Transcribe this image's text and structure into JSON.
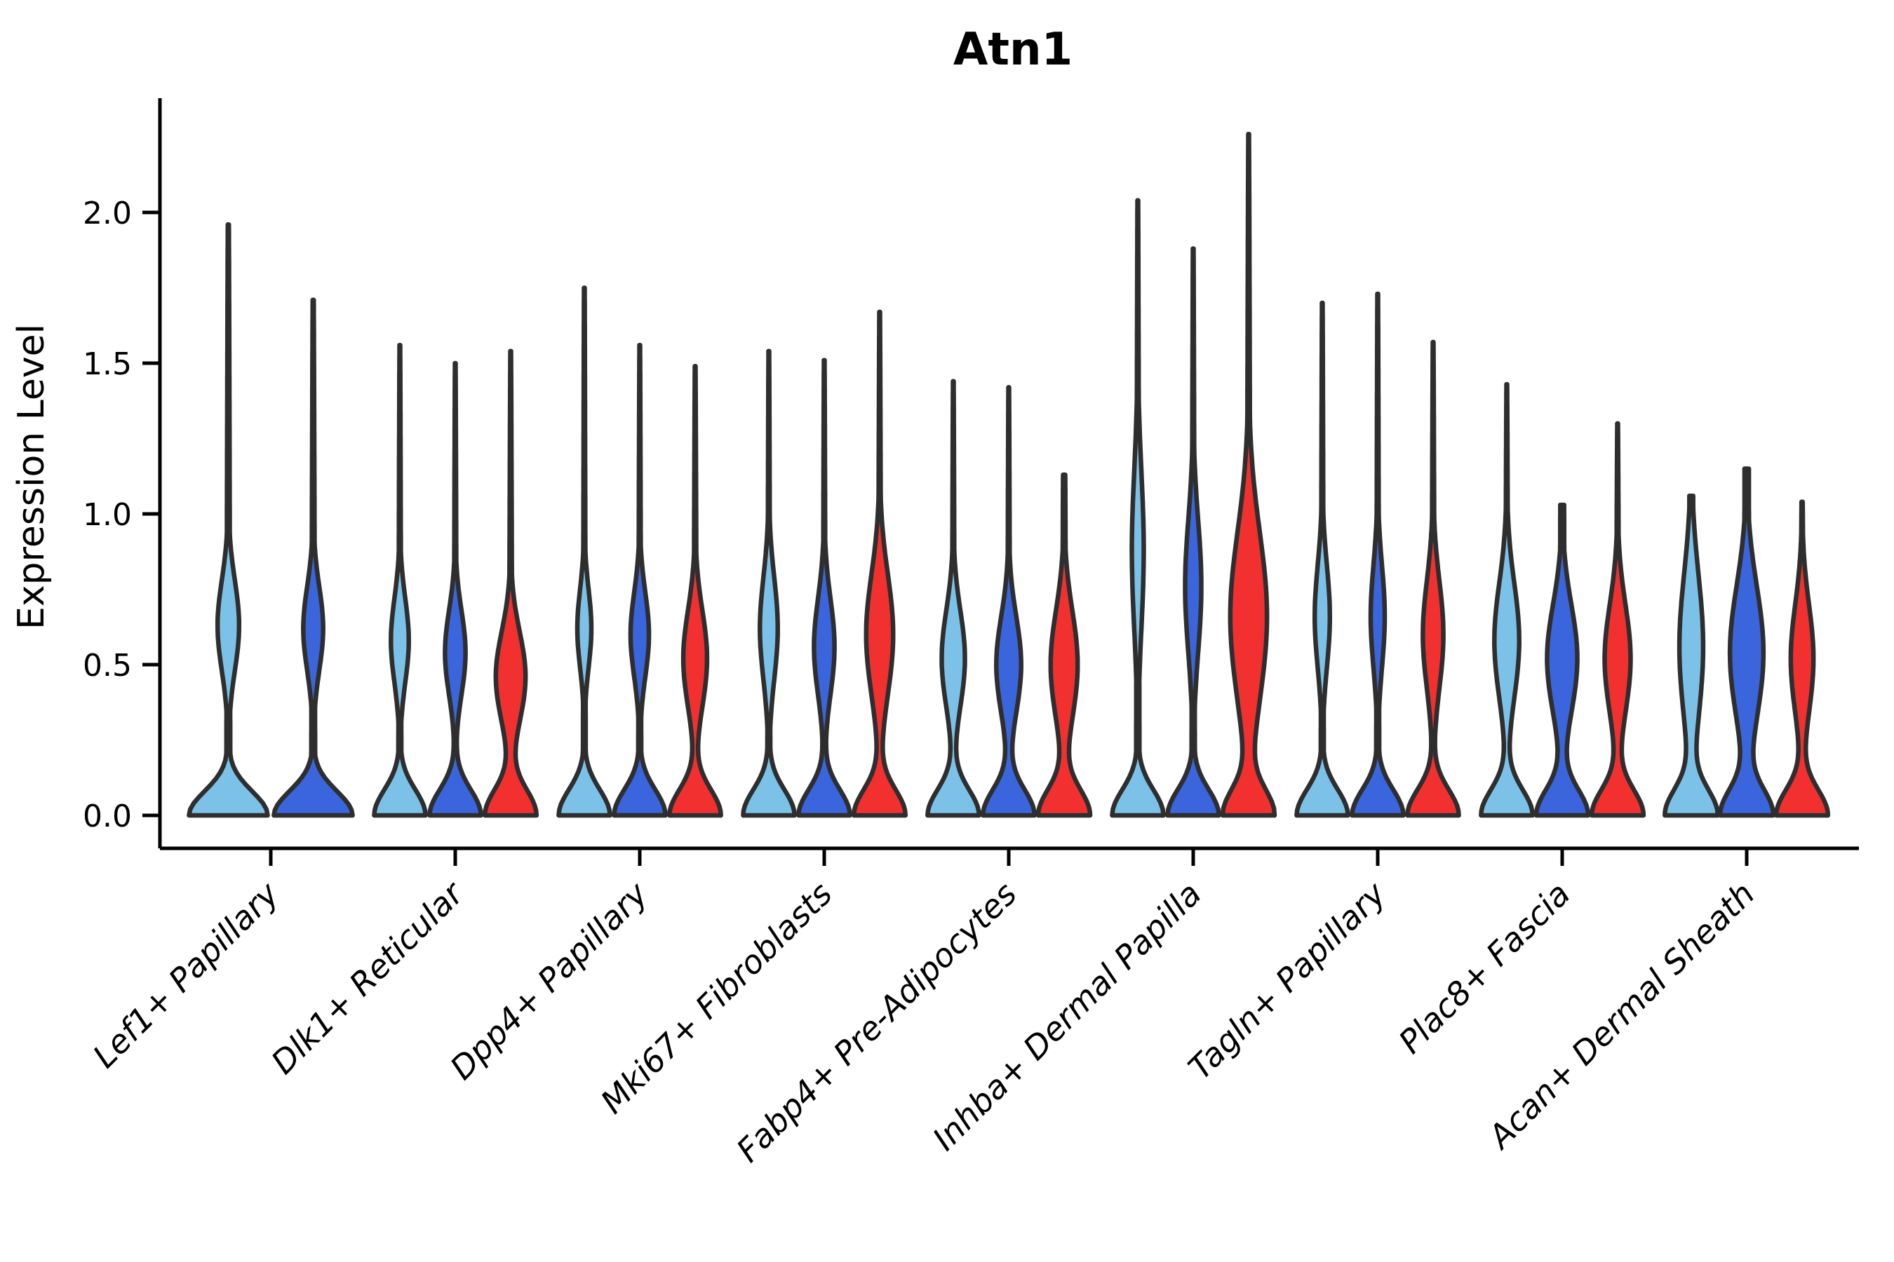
{
  "title": "Atn1",
  "y_axis": {
    "label": "Expression Level",
    "ticks": [
      "0.0",
      "0.5",
      "1.0",
      "1.5",
      "2.0"
    ],
    "tick_values": [
      0.0,
      0.5,
      1.0,
      1.5,
      2.0
    ],
    "range": [
      0.0,
      2.35
    ]
  },
  "style": {
    "edge_color": "#2E2E2E",
    "axis_color": "#000000",
    "background": "#ffffff"
  },
  "chart_data": {
    "type": "violin",
    "title": "Atn1",
    "ylabel": "Expression Level",
    "ylim": [
      0.0,
      2.35
    ],
    "grid": false,
    "legend": "none",
    "hues": [
      "light_blue",
      "dark_blue",
      "red"
    ],
    "hue_colors": {
      "light_blue": "#7CC2E8",
      "dark_blue": "#3B65DC",
      "red": "#F23030"
    },
    "categories": [
      "Lef1+ Papillary",
      "Dlk1+ Reticular",
      "Dpp4+ Papillary",
      "Mki67+ Fibroblasts",
      "Fabp4+ Pre-Adipocytes",
      "Inhba+ Dermal Papilla",
      "Tagln+ Papillary",
      "Plac8+ Fascia",
      "Acan+ Dermal Sheath"
    ],
    "groups": [
      {
        "category": "Lef1+ Papillary",
        "violins": [
          {
            "hue": "light_blue",
            "max": 1.96,
            "profile": {
              "base_w": 0.95,
              "base_sigma": 0.08,
              "bulge_center": 0.63,
              "bulge_amp": 0.26,
              "bulge_sigma": 0.15,
              "stem_w": 0.05,
              "tip_w": 0.012
            }
          },
          {
            "hue": "dark_blue",
            "max": 1.71,
            "profile": {
              "base_w": 0.95,
              "base_sigma": 0.08,
              "bulge_center": 0.62,
              "bulge_amp": 0.24,
              "bulge_sigma": 0.14,
              "stem_w": 0.05,
              "tip_w": 0.012
            }
          }
        ]
      },
      {
        "category": "Dlk1+ Reticular",
        "violins": [
          {
            "hue": "light_blue",
            "max": 1.56,
            "profile": {
              "base_w": 0.95,
              "base_sigma": 0.085,
              "bulge_center": 0.58,
              "bulge_amp": 0.33,
              "bulge_sigma": 0.14,
              "stem_w": 0.06,
              "tip_w": 0.012
            }
          },
          {
            "hue": "dark_blue",
            "max": 1.5,
            "profile": {
              "base_w": 0.95,
              "base_sigma": 0.085,
              "bulge_center": 0.54,
              "bulge_amp": 0.38,
              "bulge_sigma": 0.14,
              "stem_w": 0.06,
              "tip_w": 0.012
            }
          },
          {
            "hue": "red",
            "max": 1.54,
            "profile": {
              "base_w": 0.95,
              "base_sigma": 0.085,
              "bulge_center": 0.46,
              "bulge_amp": 0.55,
              "bulge_sigma": 0.15,
              "stem_w": 0.07,
              "tip_w": 0.012
            }
          }
        ]
      },
      {
        "category": "Dpp4+ Papillary",
        "violins": [
          {
            "hue": "light_blue",
            "max": 1.75,
            "profile": {
              "base_w": 0.95,
              "base_sigma": 0.085,
              "bulge_center": 0.62,
              "bulge_amp": 0.26,
              "bulge_sigma": 0.13,
              "stem_w": 0.055,
              "tip_w": 0.012
            }
          },
          {
            "hue": "dark_blue",
            "max": 1.56,
            "profile": {
              "base_w": 0.95,
              "base_sigma": 0.085,
              "bulge_center": 0.6,
              "bulge_amp": 0.34,
              "bulge_sigma": 0.14,
              "stem_w": 0.06,
              "tip_w": 0.012
            }
          },
          {
            "hue": "red",
            "max": 1.49,
            "profile": {
              "base_w": 0.95,
              "base_sigma": 0.085,
              "bulge_center": 0.52,
              "bulge_amp": 0.44,
              "bulge_sigma": 0.16,
              "stem_w": 0.07,
              "tip_w": 0.012
            }
          }
        ]
      },
      {
        "category": "Mki67+ Fibroblasts",
        "violins": [
          {
            "hue": "light_blue",
            "max": 1.54,
            "profile": {
              "base_w": 0.95,
              "base_sigma": 0.085,
              "bulge_center": 0.62,
              "bulge_amp": 0.33,
              "bulge_sigma": 0.17,
              "stem_w": 0.06,
              "tip_w": 0.012
            }
          },
          {
            "hue": "dark_blue",
            "max": 1.51,
            "profile": {
              "base_w": 0.95,
              "base_sigma": 0.085,
              "bulge_center": 0.56,
              "bulge_amp": 0.38,
              "bulge_sigma": 0.16,
              "stem_w": 0.06,
              "tip_w": 0.012
            }
          },
          {
            "hue": "red",
            "max": 1.67,
            "profile": {
              "base_w": 0.95,
              "base_sigma": 0.085,
              "bulge_center": 0.6,
              "bulge_amp": 0.5,
              "bulge_sigma": 0.2,
              "stem_w": 0.07,
              "tip_w": 0.012
            }
          }
        ]
      },
      {
        "category": "Fabp4+ Pre-Adipocytes",
        "violins": [
          {
            "hue": "light_blue",
            "max": 1.44,
            "profile": {
              "base_w": 0.95,
              "base_sigma": 0.085,
              "bulge_center": 0.52,
              "bulge_amp": 0.43,
              "bulge_sigma": 0.16,
              "stem_w": 0.06,
              "tip_w": 0.012
            }
          },
          {
            "hue": "dark_blue",
            "max": 1.42,
            "profile": {
              "base_w": 0.95,
              "base_sigma": 0.085,
              "bulge_center": 0.5,
              "bulge_amp": 0.46,
              "bulge_sigma": 0.16,
              "stem_w": 0.06,
              "tip_w": 0.012
            }
          },
          {
            "hue": "red",
            "max": 1.13,
            "profile": {
              "base_w": 0.95,
              "base_sigma": 0.085,
              "bulge_center": 0.5,
              "bulge_amp": 0.5,
              "bulge_sigma": 0.18,
              "stem_w": 0.08,
              "tip_w": 0.04
            }
          }
        ]
      },
      {
        "category": "Inhba+ Dermal Papilla",
        "violins": [
          {
            "hue": "light_blue",
            "max": 2.04,
            "profile": {
              "base_w": 0.95,
              "base_sigma": 0.085,
              "bulge_center": 0.88,
              "bulge_amp": 0.22,
              "bulge_sigma": 0.26,
              "stem_w": 0.065,
              "tip_w": 0.012
            }
          },
          {
            "hue": "dark_blue",
            "max": 1.88,
            "profile": {
              "base_w": 0.95,
              "base_sigma": 0.085,
              "bulge_center": 0.76,
              "bulge_amp": 0.3,
              "bulge_sigma": 0.22,
              "stem_w": 0.065,
              "tip_w": 0.012
            }
          },
          {
            "hue": "red",
            "max": 2.26,
            "profile": {
              "base_w": 0.92,
              "base_sigma": 0.085,
              "bulge_center": 0.66,
              "bulge_amp": 0.68,
              "bulge_sigma": 0.28,
              "stem_w": 0.08,
              "tip_w": 0.012
            }
          }
        ]
      },
      {
        "category": "Tagln+ Papillary",
        "violins": [
          {
            "hue": "light_blue",
            "max": 1.7,
            "profile": {
              "base_w": 0.95,
              "base_sigma": 0.085,
              "bulge_center": 0.66,
              "bulge_amp": 0.28,
              "bulge_sigma": 0.17,
              "stem_w": 0.06,
              "tip_w": 0.012
            }
          },
          {
            "hue": "dark_blue",
            "max": 1.73,
            "profile": {
              "base_w": 0.95,
              "base_sigma": 0.085,
              "bulge_center": 0.66,
              "bulge_amp": 0.26,
              "bulge_sigma": 0.17,
              "stem_w": 0.06,
              "tip_w": 0.012
            }
          },
          {
            "hue": "red",
            "max": 1.57,
            "profile": {
              "base_w": 0.95,
              "base_sigma": 0.085,
              "bulge_center": 0.6,
              "bulge_amp": 0.38,
              "bulge_sigma": 0.18,
              "stem_w": 0.07,
              "tip_w": 0.012
            }
          }
        ]
      },
      {
        "category": "Plac8+ Fascia",
        "violins": [
          {
            "hue": "light_blue",
            "max": 1.43,
            "profile": {
              "base_w": 0.95,
              "base_sigma": 0.085,
              "bulge_center": 0.58,
              "bulge_amp": 0.46,
              "bulge_sigma": 0.19,
              "stem_w": 0.07,
              "tip_w": 0.012
            }
          },
          {
            "hue": "dark_blue",
            "max": 1.03,
            "profile": {
              "base_w": 0.95,
              "base_sigma": 0.085,
              "bulge_center": 0.52,
              "bulge_amp": 0.56,
              "bulge_sigma": 0.18,
              "stem_w": 0.09,
              "tip_w": 0.07
            }
          },
          {
            "hue": "red",
            "max": 1.3,
            "profile": {
              "base_w": 0.95,
              "base_sigma": 0.085,
              "bulge_center": 0.52,
              "bulge_amp": 0.48,
              "bulge_sigma": 0.18,
              "stem_w": 0.075,
              "tip_w": 0.012
            }
          }
        ]
      },
      {
        "category": "Acan+ Dermal Sheath",
        "violins": [
          {
            "hue": "light_blue",
            "max": 1.06,
            "profile": {
              "base_w": 0.95,
              "base_sigma": 0.085,
              "bulge_center": 0.56,
              "bulge_amp": 0.44,
              "bulge_sigma": 0.24,
              "stem_w": 0.09,
              "tip_w": 0.07
            }
          },
          {
            "hue": "dark_blue",
            "max": 1.15,
            "profile": {
              "base_w": 0.95,
              "base_sigma": 0.085,
              "bulge_center": 0.54,
              "bulge_amp": 0.62,
              "bulge_sigma": 0.22,
              "stem_w": 0.09,
              "tip_w": 0.08
            }
          },
          {
            "hue": "red",
            "max": 1.04,
            "profile": {
              "base_w": 0.95,
              "base_sigma": 0.085,
              "bulge_center": 0.52,
              "bulge_amp": 0.42,
              "bulge_sigma": 0.18,
              "stem_w": 0.08,
              "tip_w": 0.02
            }
          }
        ]
      }
    ]
  }
}
